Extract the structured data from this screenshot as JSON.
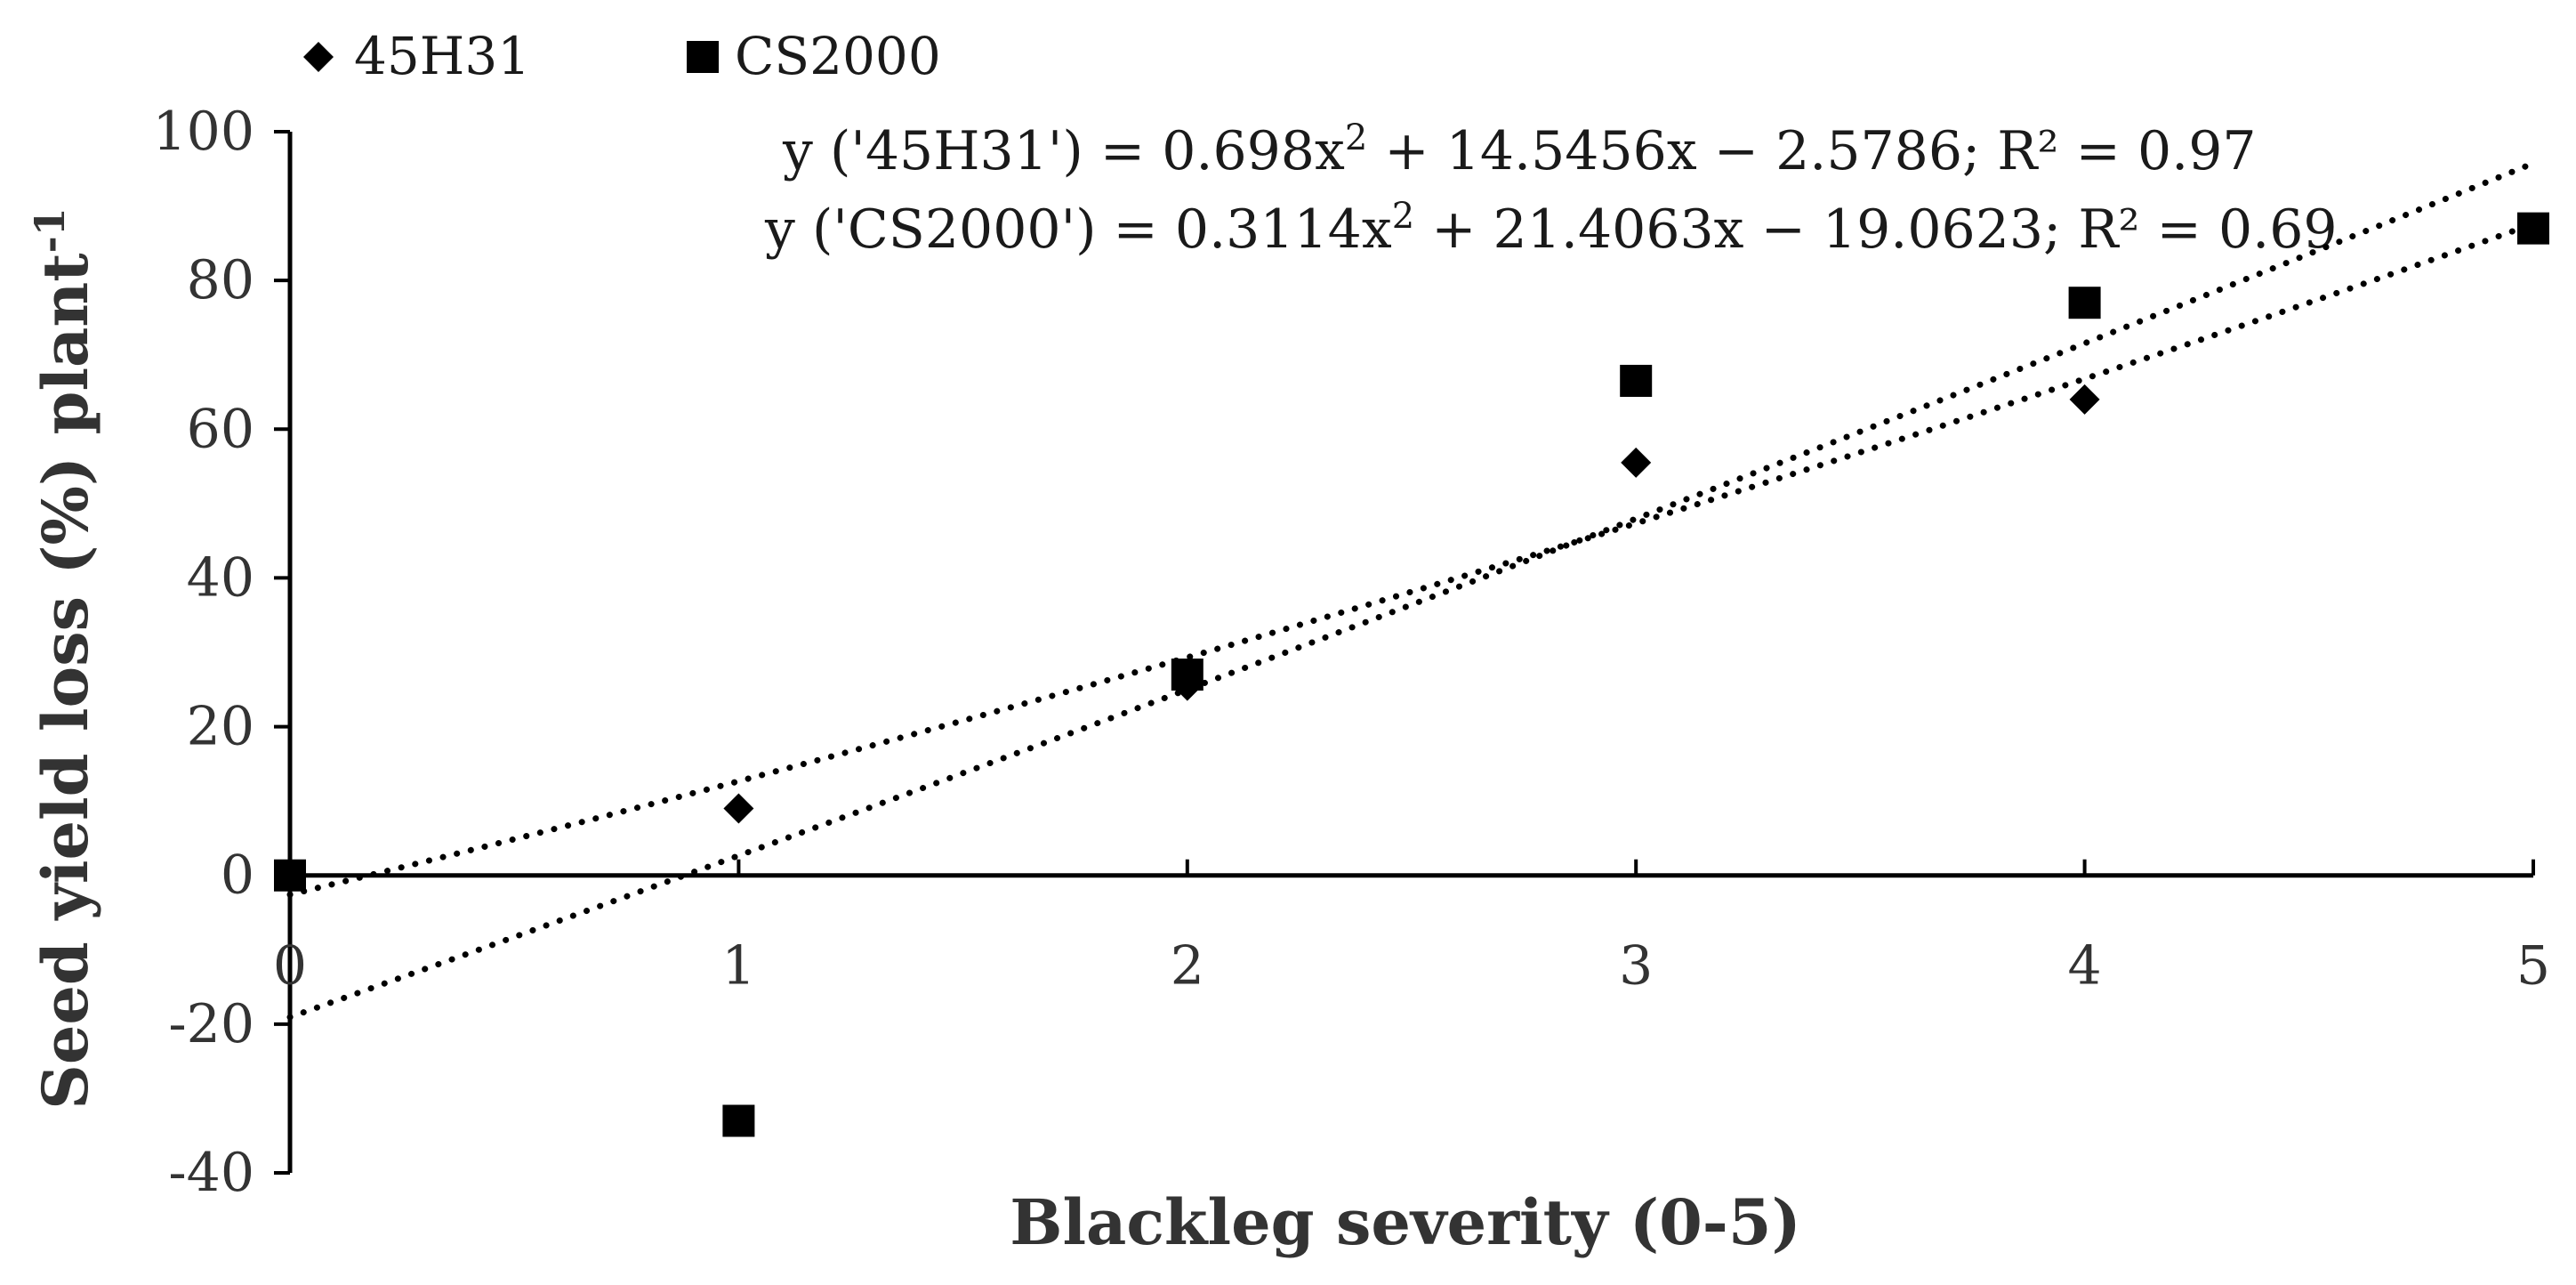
{
  "chart_data": {
    "type": "scatter",
    "title": "",
    "xlabel": "Blackleg severity (0-5)",
    "ylabel": "Seed yield loss (%) plant",
    "ylabel_superscript": "-1",
    "xlim": [
      0,
      5
    ],
    "ylim": [
      -40,
      100
    ],
    "x_ticks": [
      "0",
      "1",
      "2",
      "3",
      "4",
      "5"
    ],
    "y_ticks": [
      "100",
      "80",
      "60",
      "40",
      "20",
      "0",
      "-20",
      "-40"
    ],
    "legend_position": "top-left",
    "series": [
      {
        "name": "45H31",
        "marker": "diamond",
        "x": [
          0,
          1,
          2,
          3,
          4,
          5
        ],
        "y": [
          0,
          9,
          25.5,
          55.5,
          64,
          87
        ],
        "trendline": {
          "type": "polynomial-2",
          "a": 0.698,
          "b": 14.5456,
          "c": -2.5786,
          "equation": "y ('45H31') = 0.698x",
          "equation_rest": " + 14.5456x − 2.5786; R² = 0.97"
        }
      },
      {
        "name": "CS2000",
        "marker": "square",
        "x": [
          0,
          1,
          2,
          3,
          4,
          5
        ],
        "y": [
          0,
          -33,
          27,
          66.5,
          77,
          87
        ],
        "trendline": {
          "type": "polynomial-2",
          "a": 0.3114,
          "b": 21.4063,
          "c": -19.0623,
          "equation": "y ('CS2000') = 0.3114x",
          "equation_rest": " + 21.4063x − 19.0623; R² = 0.69"
        }
      }
    ],
    "colors": {
      "marker": "#000000",
      "axis": "#000000",
      "text": "#333333"
    }
  }
}
